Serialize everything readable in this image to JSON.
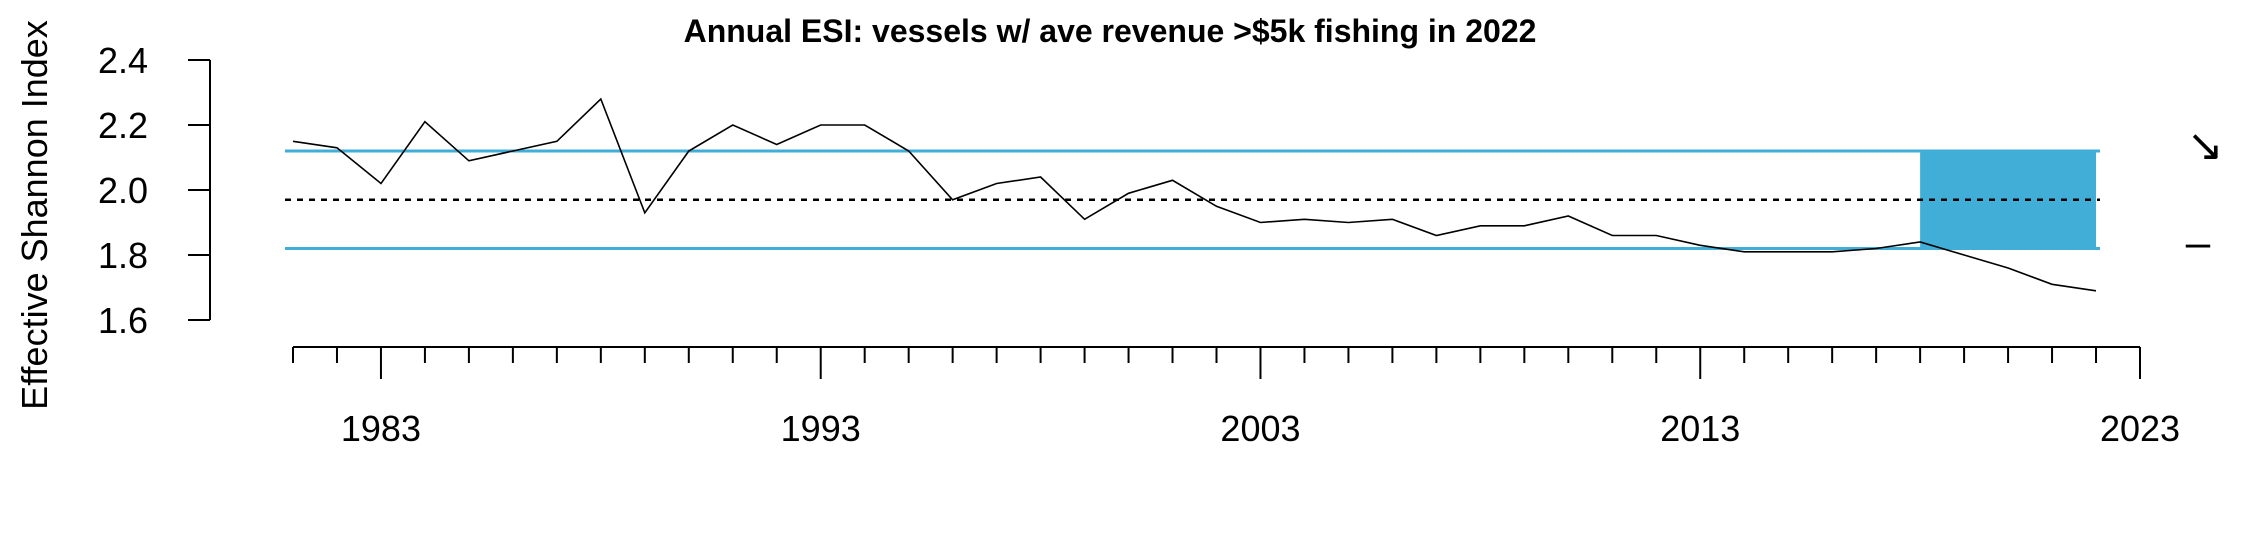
{
  "chart_data": {
    "type": "line",
    "title": "Annual ESI: vessels w/ ave revenue >$5k fishing in 2022",
    "xlabel": "",
    "ylabel": "Effective Shannon Index",
    "xlim": [
      1981,
      2023
    ],
    "ylim": [
      1.6,
      2.4
    ],
    "y_ticks": [
      "1.6",
      "1.8",
      "2.0",
      "2.2",
      "2.4"
    ],
    "x_tick_labels": [
      "1983",
      "1993",
      "2003",
      "2013",
      "2023"
    ],
    "x_major_ticks": [
      1983,
      1993,
      2003,
      2013,
      2023
    ],
    "x": [
      1981,
      1982,
      1983,
      1984,
      1985,
      1986,
      1987,
      1988,
      1989,
      1990,
      1991,
      1992,
      1993,
      1994,
      1995,
      1996,
      1997,
      1998,
      1999,
      2000,
      2001,
      2002,
      2003,
      2004,
      2005,
      2006,
      2007,
      2008,
      2009,
      2010,
      2011,
      2012,
      2013,
      2014,
      2015,
      2016,
      2017,
      2018,
      2019,
      2020,
      2021,
      2022
    ],
    "series": [
      {
        "values": [
          2.15,
          2.13,
          2.02,
          2.21,
          2.09,
          2.12,
          2.15,
          2.28,
          1.93,
          2.12,
          2.2,
          2.14,
          2.2,
          2.2,
          2.12,
          1.97,
          2.02,
          2.04,
          1.91,
          1.99,
          2.03,
          1.95,
          1.9,
          1.91,
          1.9,
          1.91,
          1.86,
          1.89,
          1.89,
          1.92,
          1.86,
          1.86,
          1.83,
          1.81,
          1.81,
          1.81,
          1.82,
          1.84,
          1.8,
          1.76,
          1.71,
          1.69
        ],
        "color": "#000000"
      }
    ],
    "mean": 1.97,
    "upper_sd": 2.12,
    "lower_sd": 1.82,
    "recent_window": [
      2018,
      2022
    ],
    "grid": false,
    "colors": {
      "band": "#41AED8",
      "line": "#000000",
      "reference_lines": "#41AED8"
    },
    "indicators": {
      "trend": "↘",
      "mean": "–"
    }
  }
}
